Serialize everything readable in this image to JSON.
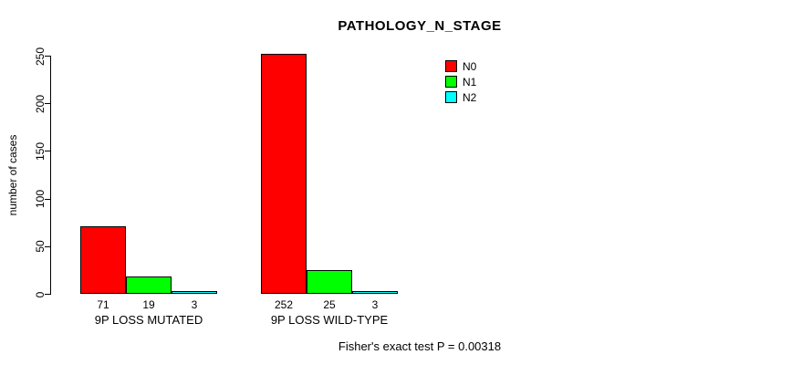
{
  "title": "PATHOLOGY_N_STAGE",
  "footer": "Fisher's exact test P = 0.00318",
  "chart_data": {
    "type": "bar",
    "title": "PATHOLOGY_N_STAGE",
    "xlabel": "",
    "ylabel": "number of cases",
    "ylim": [
      0,
      250
    ],
    "yticks": [
      0,
      50,
      100,
      150,
      200,
      250
    ],
    "grid": false,
    "legend_position": "top-right",
    "categories": [
      "9P LOSS MUTATED",
      "9P LOSS WILD-TYPE"
    ],
    "series": [
      {
        "name": "N0",
        "color": "#FF0000",
        "values": [
          71,
          252
        ]
      },
      {
        "name": "N1",
        "color": "#00FF00",
        "values": [
          19,
          25
        ]
      },
      {
        "name": "N2",
        "color": "#00FFFF",
        "values": [
          3,
          3
        ]
      }
    ],
    "bar_value_labels": [
      [
        "71",
        "19",
        "3"
      ],
      [
        "252",
        "25",
        "3"
      ]
    ],
    "annotation": "Fisher's exact test P = 0.00318"
  },
  "legend": {
    "items": [
      {
        "label": "N0",
        "color": "#FF0000"
      },
      {
        "label": "N1",
        "color": "#00FF00"
      },
      {
        "label": "N2",
        "color": "#00FFFF"
      }
    ]
  }
}
